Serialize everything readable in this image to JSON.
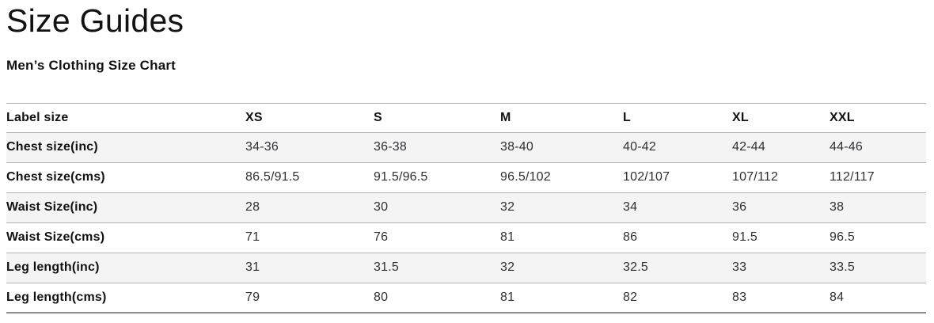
{
  "page": {
    "title": "Size Guides"
  },
  "chart_data": {
    "type": "table",
    "title": "Men’s Clothing Size Chart",
    "columns": [
      "Label size",
      "XS",
      "S",
      "M",
      "L",
      "XL",
      "XXL"
    ],
    "rows": [
      {
        "label": "Chest size(inc)",
        "values": [
          "34-36",
          "36-38",
          "38-40",
          "40-42",
          "42-44",
          "44-46"
        ]
      },
      {
        "label": "Chest size(cms)",
        "values": [
          "86.5/91.5",
          "91.5/96.5",
          "96.5/102",
          "102/107",
          "107/112",
          "112/117"
        ]
      },
      {
        "label": "Waist Size(inc)",
        "values": [
          "28",
          "30",
          "32",
          "34",
          "36",
          "38"
        ]
      },
      {
        "label": "Waist Size(cms)",
        "values": [
          "71",
          "76",
          "81",
          "86",
          "91.5",
          "96.5"
        ]
      },
      {
        "label": "Leg length(inc)",
        "values": [
          "31",
          "31.5",
          "32",
          "32.5",
          "33",
          "33.5"
        ]
      },
      {
        "label": "Leg length(cms)",
        "values": [
          "79",
          "80",
          "81",
          "82",
          "83",
          "84"
        ]
      }
    ],
    "layout": {
      "zebra_striped_rows": [
        0,
        2,
        4
      ],
      "header_alignment": "left"
    }
  },
  "colors": {
    "text": "#121212",
    "value_text": "#303034",
    "stripe_background": "#f4f4f5",
    "row_border": "#b2b2b2",
    "table_bottom_border": "#8f8f8f",
    "page_background": "#ffffff"
  }
}
